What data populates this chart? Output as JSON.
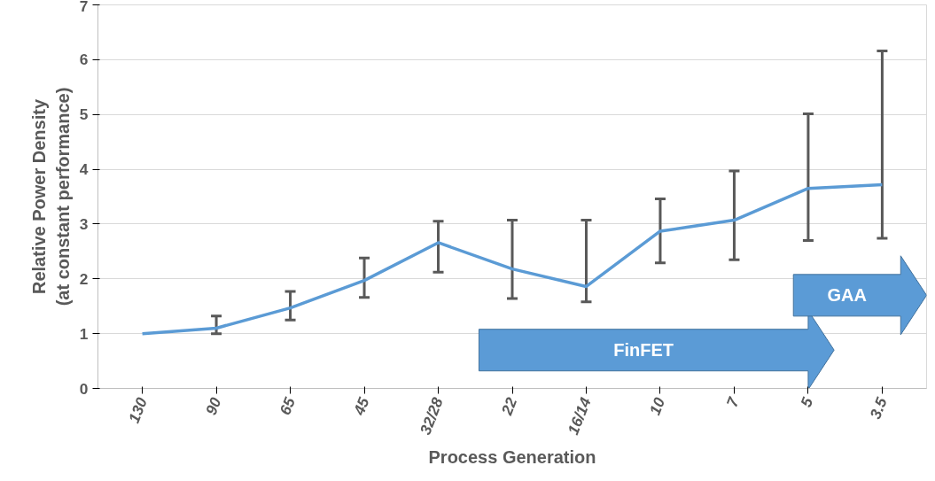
{
  "chart_data": {
    "type": "line",
    "categories": [
      "130",
      "90",
      "65",
      "45",
      "32/28",
      "22",
      "16/14",
      "10",
      "7",
      "5",
      "3.5"
    ],
    "series": [
      {
        "color": "#5b9bd5",
        "values": [
          1.0,
          1.1,
          1.47,
          1.97,
          2.66,
          2.18,
          1.86,
          2.87,
          3.07,
          3.65,
          3.72
        ],
        "errors": [
          null,
          [
            1.0,
            1.32
          ],
          [
            1.25,
            1.77
          ],
          [
            1.66,
            2.38
          ],
          [
            2.12,
            3.05
          ],
          [
            1.64,
            3.07
          ],
          [
            1.58,
            3.07
          ],
          [
            2.29,
            3.46
          ],
          [
            2.35,
            3.97
          ],
          [
            2.7,
            5.01
          ],
          [
            2.74,
            6.16
          ]
        ]
      }
    ],
    "xlabel": "Process Generation",
    "ylabel": "Relative Power Density (at constant performance)",
    "ylim": [
      0,
      7
    ],
    "yticks": [
      0,
      1,
      2,
      3,
      4,
      5,
      6,
      7
    ],
    "grid": "y",
    "marker": "none",
    "line_style": "solid",
    "annotations": [
      "FinFET",
      "GAA"
    ]
  }
}
